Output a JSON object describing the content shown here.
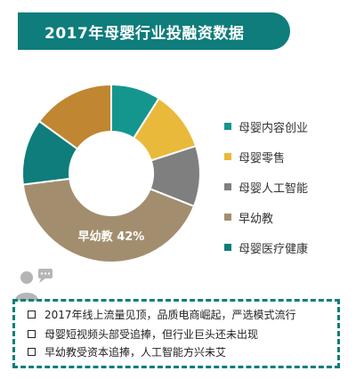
{
  "title": "2017年母婴行业投融资数据",
  "colors": {
    "teal_dark": "#0e7d7b",
    "teal": "#14968f",
    "yellow": "#e9b93b",
    "gray": "#7f7f7f",
    "tan": "#a28e6f",
    "brown": "#c08632"
  },
  "chart_data": {
    "type": "pie",
    "donut": true,
    "legend_position": "right",
    "slices": [
      {
        "label": "母婴内容创业",
        "value": 9,
        "color": "#14968f"
      },
      {
        "label": "母婴零售",
        "value": 11,
        "color": "#e9b93b"
      },
      {
        "label": "母婴人工智能",
        "value": 11,
        "color": "#7f7f7f"
      },
      {
        "label": "早幼教",
        "value": 42,
        "color": "#a28e6f"
      },
      {
        "label": "母婴医疗健康",
        "value": 12,
        "color": "#0e7d7b"
      },
      {
        "label": "",
        "value": 15,
        "color": "#c08632"
      }
    ],
    "legend": [
      "母婴内容创业",
      "母婴零售",
      "母婴人工智能",
      "早幼教",
      "母婴医疗健康"
    ],
    "data_label": "早幼教  42%"
  },
  "notes": [
    "2017年线上流量见顶，品质电商崛起，严选模式流行",
    "母婴短视频头部受追捧，但行业巨头还未出现",
    "早幼教受资本追捧，人工智能方兴未艾"
  ]
}
